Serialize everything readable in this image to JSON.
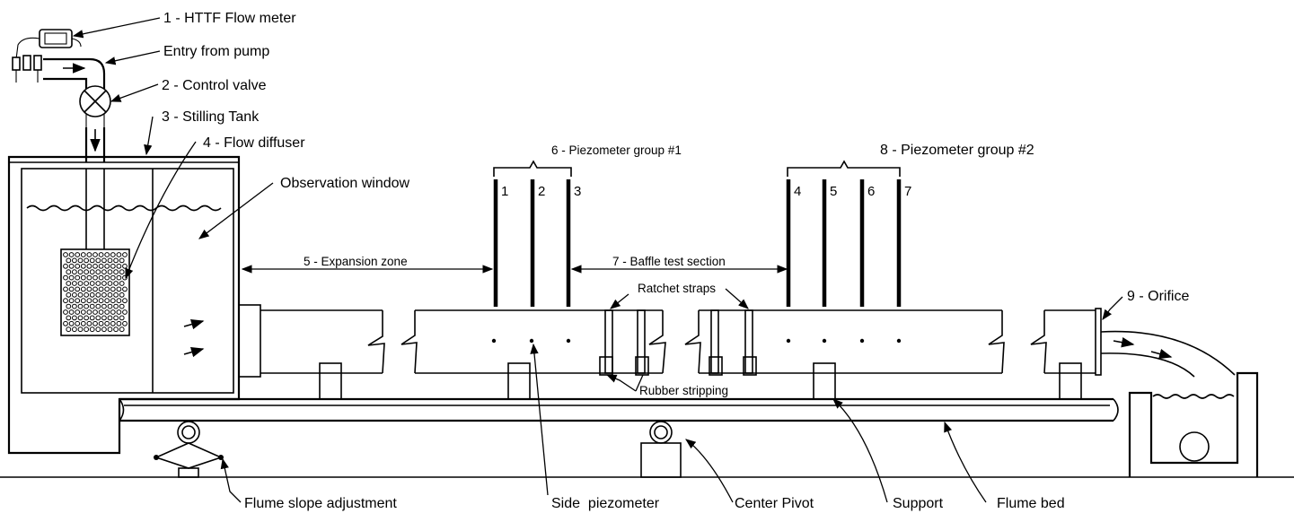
{
  "labels": {
    "flow_meter": "1 - HTTF Flow meter",
    "entry_from_pump": "Entry from pump",
    "control_valve": "2 - Control valve",
    "stilling_tank": "3 - Stilling Tank",
    "flow_diffuser": "4 - Flow diffuser",
    "observation_window": "Observation window",
    "expansion_zone": "5 - Expansion zone",
    "piezometer_group_1": "6 - Piezometer group #1",
    "baffle_test_section": "7 - Baffle test section",
    "piezometer_group_2": "8 - Piezometer group #2",
    "ratchet_straps": "Ratchet straps",
    "orifice": "9 - Orifice",
    "rubber_stripping": "Rubber stripping",
    "flume_slope_adjustment": "Flume slope adjustment",
    "side_piezometer": "Side  piezometer",
    "center_pivot": "Center Pivot",
    "support": "Support",
    "flume_bed": "Flume bed"
  },
  "piezometer_numbers_group_1": [
    "1",
    "2",
    "3"
  ],
  "piezometer_numbers_group_2": [
    "4",
    "5",
    "6",
    "7"
  ],
  "colors": {
    "line": "#000000",
    "background": "#ffffff"
  }
}
